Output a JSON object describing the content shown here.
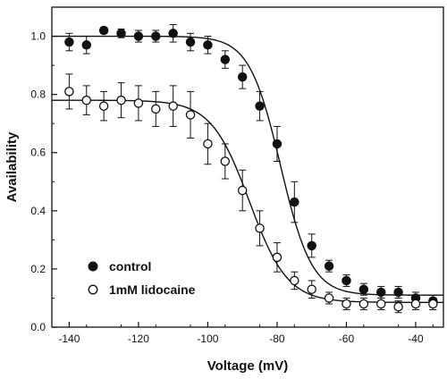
{
  "chart_data": {
    "type": "scatter",
    "xlabel": "Voltage (mV)",
    "ylabel": "Availability",
    "xlim": [
      -145,
      -32
    ],
    "ylim": [
      0.0,
      1.1
    ],
    "xticks": [
      -140,
      -120,
      -100,
      -80,
      -60,
      -40
    ],
    "yticks": [
      0.0,
      0.2,
      0.4,
      0.6,
      0.8,
      1.0
    ],
    "xtick_labels": [
      "-140",
      "-120",
      "-100",
      "-80",
      "-60",
      "-40"
    ],
    "ytick_labels": [
      "0.0",
      "0.2",
      "0.4",
      "0.6",
      "0.8",
      "1.0"
    ],
    "legend_position": "lower-left",
    "series": [
      {
        "name": "control",
        "marker": "filled-circle",
        "color": "#111111",
        "fit": {
          "top": 1.0,
          "bottom": 0.11,
          "v_half": -79,
          "slope": 4.5
        },
        "points": [
          {
            "x": -140,
            "y": 0.98,
            "err": 0.03
          },
          {
            "x": -135,
            "y": 0.97,
            "err": 0.03
          },
          {
            "x": -130,
            "y": 1.02,
            "err": 0.01
          },
          {
            "x": -125,
            "y": 1.01,
            "err": 0.015
          },
          {
            "x": -120,
            "y": 1.0,
            "err": 0.02
          },
          {
            "x": -115,
            "y": 1.0,
            "err": 0.02
          },
          {
            "x": -110,
            "y": 1.01,
            "err": 0.03
          },
          {
            "x": -105,
            "y": 0.98,
            "err": 0.03
          },
          {
            "x": -100,
            "y": 0.97,
            "err": 0.03
          },
          {
            "x": -95,
            "y": 0.92,
            "err": 0.03
          },
          {
            "x": -90,
            "y": 0.86,
            "err": 0.04
          },
          {
            "x": -85,
            "y": 0.76,
            "err": 0.05
          },
          {
            "x": -80,
            "y": 0.63,
            "err": 0.06
          },
          {
            "x": -75,
            "y": 0.43,
            "err": 0.07
          },
          {
            "x": -70,
            "y": 0.28,
            "err": 0.04
          },
          {
            "x": -65,
            "y": 0.21,
            "err": 0.02
          },
          {
            "x": -60,
            "y": 0.16,
            "err": 0.02
          },
          {
            "x": -55,
            "y": 0.13,
            "err": 0.02
          },
          {
            "x": -50,
            "y": 0.12,
            "err": 0.02
          },
          {
            "x": -45,
            "y": 0.12,
            "err": 0.02
          },
          {
            "x": -40,
            "y": 0.1,
            "err": 0.02
          },
          {
            "x": -35,
            "y": 0.09,
            "err": 0.02
          }
        ]
      },
      {
        "name": "1mM lidocaine",
        "marker": "open-circle",
        "color": "#111111",
        "fit": {
          "top": 0.78,
          "bottom": 0.085,
          "v_half": -88,
          "slope": 5.5
        },
        "points": [
          {
            "x": -140,
            "y": 0.81,
            "err": 0.06
          },
          {
            "x": -135,
            "y": 0.78,
            "err": 0.05
          },
          {
            "x": -130,
            "y": 0.76,
            "err": 0.05
          },
          {
            "x": -125,
            "y": 0.78,
            "err": 0.06
          },
          {
            "x": -120,
            "y": 0.77,
            "err": 0.06
          },
          {
            "x": -115,
            "y": 0.75,
            "err": 0.06
          },
          {
            "x": -110,
            "y": 0.76,
            "err": 0.07
          },
          {
            "x": -105,
            "y": 0.73,
            "err": 0.08
          },
          {
            "x": -100,
            "y": 0.63,
            "err": 0.07
          },
          {
            "x": -95,
            "y": 0.57,
            "err": 0.06
          },
          {
            "x": -90,
            "y": 0.47,
            "err": 0.07
          },
          {
            "x": -85,
            "y": 0.34,
            "err": 0.06
          },
          {
            "x": -80,
            "y": 0.24,
            "err": 0.05
          },
          {
            "x": -75,
            "y": 0.16,
            "err": 0.03
          },
          {
            "x": -70,
            "y": 0.13,
            "err": 0.03
          },
          {
            "x": -65,
            "y": 0.1,
            "err": 0.02
          },
          {
            "x": -60,
            "y": 0.08,
            "err": 0.02
          },
          {
            "x": -55,
            "y": 0.08,
            "err": 0.02
          },
          {
            "x": -50,
            "y": 0.08,
            "err": 0.02
          },
          {
            "x": -45,
            "y": 0.07,
            "err": 0.02
          },
          {
            "x": -40,
            "y": 0.08,
            "err": 0.02
          },
          {
            "x": -35,
            "y": 0.08,
            "err": 0.02
          }
        ]
      }
    ]
  }
}
